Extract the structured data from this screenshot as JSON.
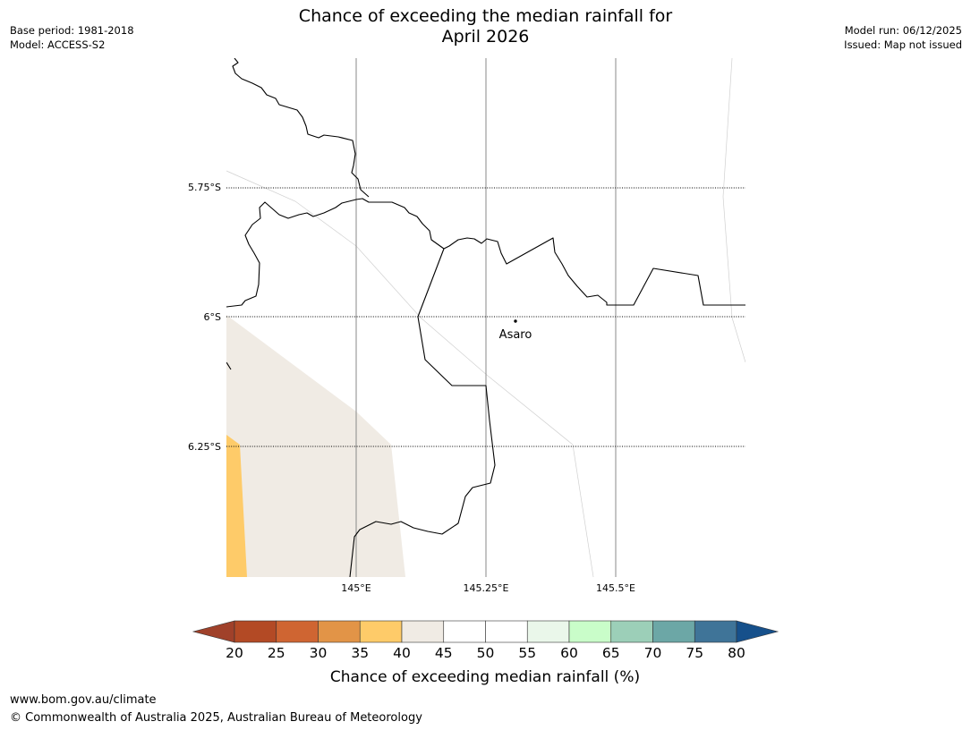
{
  "title_line1": "Chance of exceeding the median rainfall for",
  "title_line2": "April 2026",
  "meta_left": [
    "Base period: 1981-2018",
    "Model: ACCESS-S2"
  ],
  "meta_right": [
    "Model run: 06/12/2025",
    "Issued: Map not issued"
  ],
  "map": {
    "lat_labels": [
      "5.75°S",
      "6°S",
      "6.25°S"
    ],
    "lon_labels": [
      "145°E",
      "145.25°E",
      "145.5°E"
    ],
    "town": "Asaro"
  },
  "colorbar": {
    "ticks": [
      "20",
      "25",
      "30",
      "35",
      "40",
      "45",
      "50",
      "55",
      "60",
      "65",
      "70",
      "75",
      "80"
    ],
    "colors": [
      "#a0412a",
      "#b34a25",
      "#cf6532",
      "#e29447",
      "#fecb69",
      "#f0ebe4",
      "#ffffff",
      "#ffffff",
      "#eaf7ea",
      "#c9fdc9",
      "#9ccfb8",
      "#6ca7a6",
      "#3f7498",
      "#16508b"
    ],
    "title": "Chance of exceeding median rainfall (%)"
  },
  "footer": {
    "url": "www.bom.gov.au/climate",
    "copyright": "© Commonwealth of Australia 2025, Australian Bureau of Meteorology"
  }
}
